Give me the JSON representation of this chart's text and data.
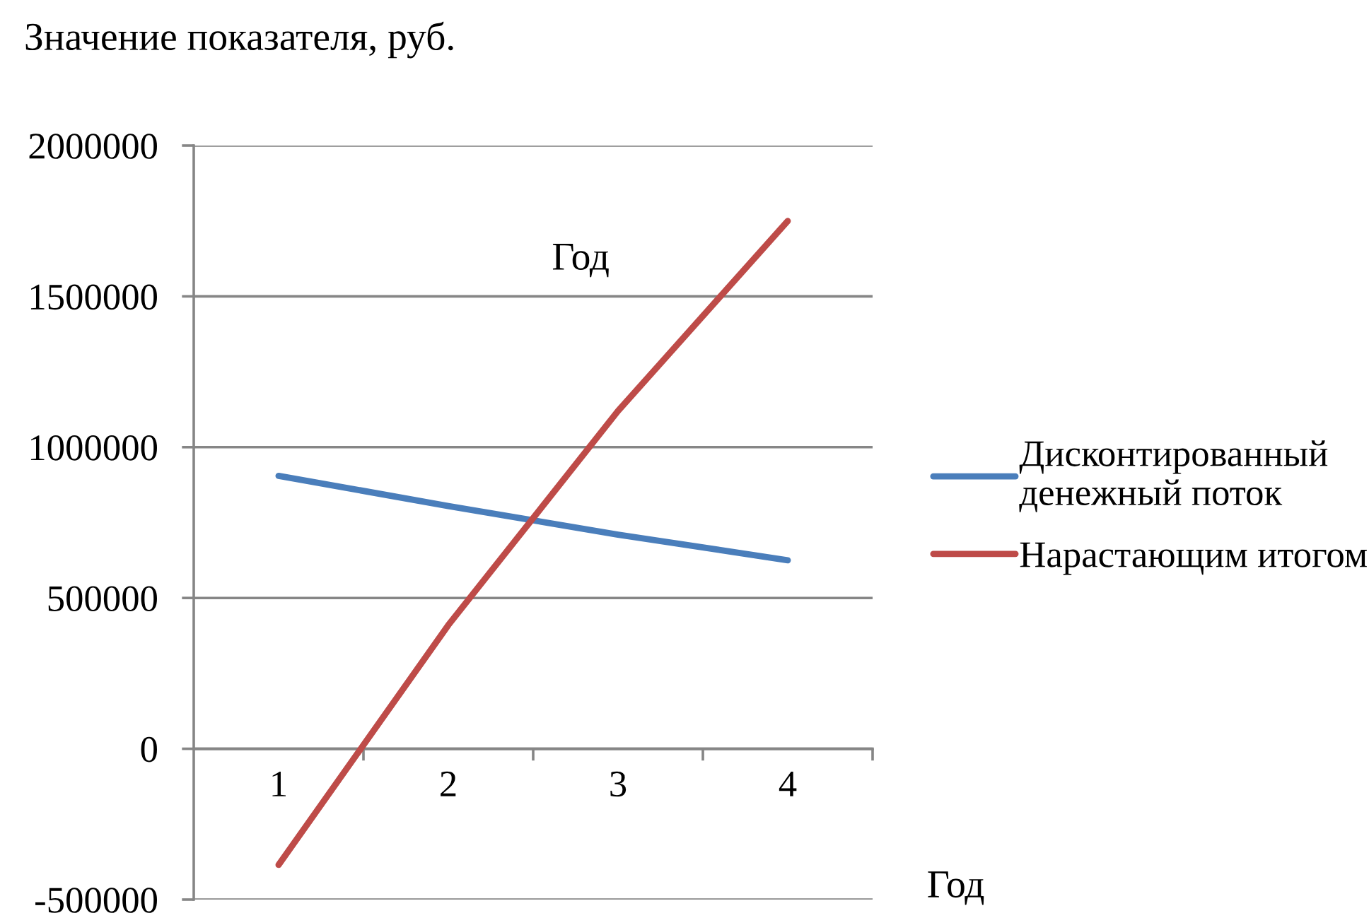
{
  "chart_data": {
    "type": "line",
    "title": "Год",
    "xlabel": "Год",
    "ylabel": "Значение показателя, руб.",
    "categories": [
      "1",
      "2",
      "3",
      "4"
    ],
    "series": [
      {
        "name": "Дисконтированный\nденежный поток",
        "color": "#4a7ebb",
        "values": [
          905000,
          805000,
          710000,
          625000
        ]
      },
      {
        "name": "Нарастающим итогом",
        "color": "#be4b48",
        "values": [
          -385000,
          410000,
          1120000,
          1750000
        ]
      }
    ],
    "ylim": [
      -500000,
      2000000
    ],
    "yticks": [
      -500000,
      0,
      500000,
      1000000,
      1500000,
      2000000
    ],
    "grid": "y",
    "legend": "right"
  }
}
